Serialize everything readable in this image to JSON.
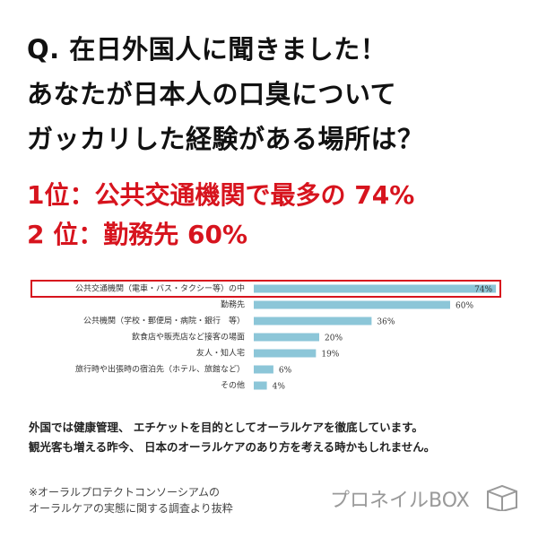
{
  "title": [
    "Q. 在日外国人に聞きました！",
    "あなたが日本人の口臭について",
    "ガッカリした経験がある場所は？"
  ],
  "highlights": [
    "1位：公共交通機関で最多の 74%",
    "2 位：勤務先 60%"
  ],
  "chart_data": {
    "type": "bar",
    "orientation": "horizontal",
    "color": "#8cc6d8",
    "categories": [
      "公共交通機関（電車・バス・タクシー等）の中",
      "勤務先",
      "公共機関（学校・郵便局・病院・銀行　等）",
      "飲食店や販売店など接客の場面",
      "友人・知人宅",
      "旅行時や出張時の宿泊先（ホテル、旅館など）",
      "その他"
    ],
    "values": [
      74,
      60,
      36,
      20,
      19,
      6,
      4
    ],
    "value_labels": [
      "74%",
      "60%",
      "36%",
      "20%",
      "19%",
      "6%",
      "4%"
    ]
  },
  "body": [
    "外国では健康管理、 エチケットを目的としてオーラルケアを徹底しています。",
    "観光客も増える昨今、 日本のオーラルケアのあり方を考える時かもしれません。"
  ],
  "footnote": [
    "※オーラルプロテクトコンソーシアムの",
    "オーラルケアの実態に関する調査より抜粋"
  ],
  "logo": "プロネイルBOX"
}
